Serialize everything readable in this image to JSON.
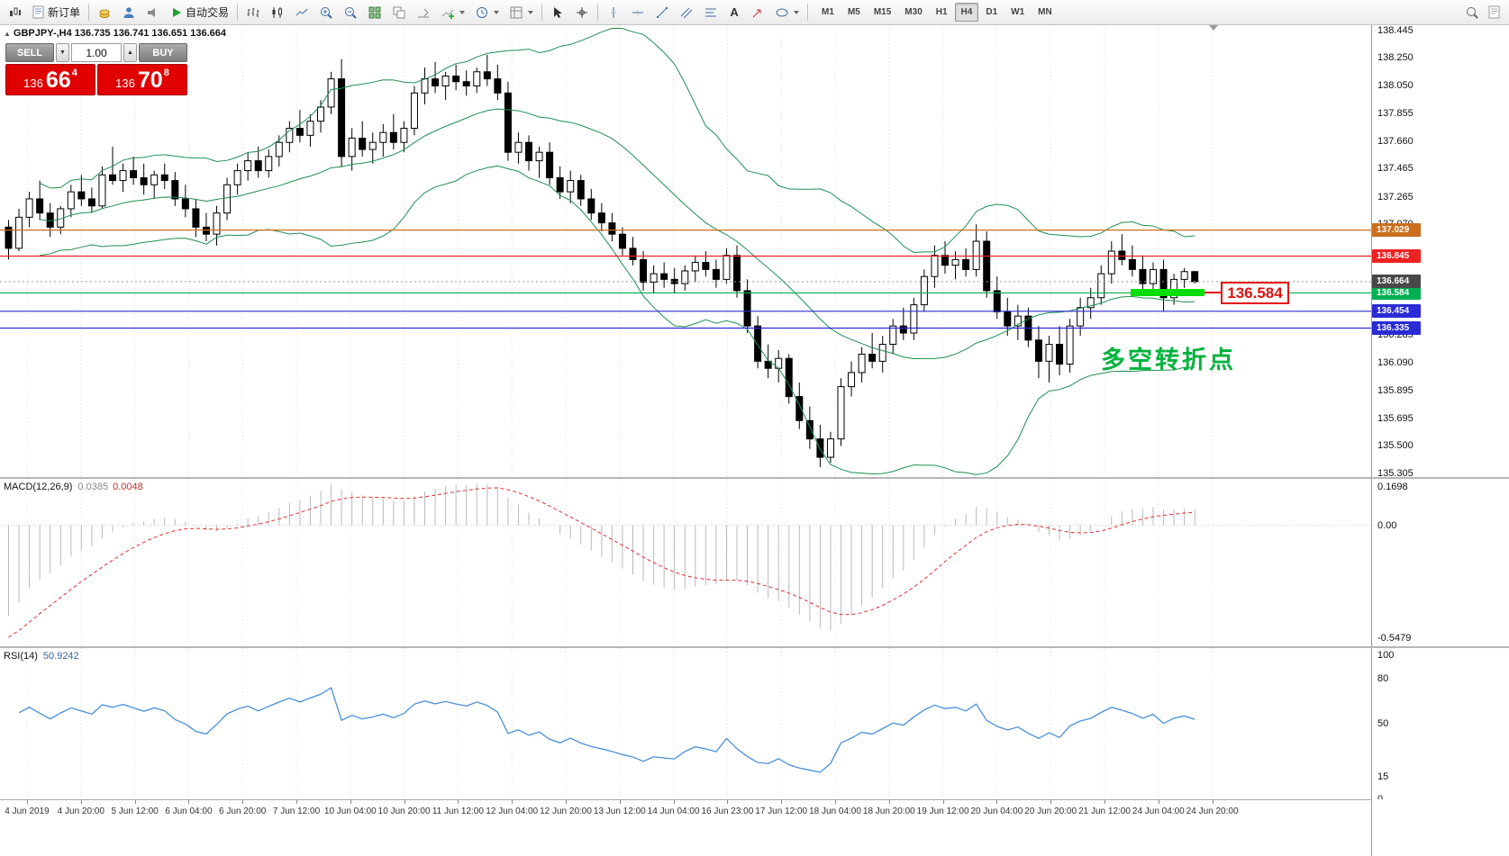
{
  "toolbar": {
    "new_order_label": "新订单",
    "autotrading_label": "自动交易",
    "text_tool_label": "A",
    "timeframes": [
      "M1",
      "M5",
      "M15",
      "M30",
      "H1",
      "H4",
      "D1",
      "W1",
      "MN"
    ],
    "active_timeframe": "H4",
    "icons": [
      "chart-window",
      "new-order",
      "market-watch",
      "navigator",
      "terminal",
      "autotrading-play",
      "bar-chart",
      "candlestick-chart",
      "line-chart",
      "zoom-in",
      "zoom-out",
      "tile-windows",
      "auto-arrange",
      "chart-shift",
      "indicators",
      "periods",
      "templates",
      "cursor",
      "crosshair",
      "vertical-line",
      "horizontal-line",
      "trendline",
      "equidistant-channel",
      "fibonacci",
      "text",
      "arrow",
      "shapes",
      "search",
      "help"
    ]
  },
  "chart": {
    "symbol_info": "GBPJPY-,H4  136.735 136.741 136.651 136.664",
    "trade_panel": {
      "sell_label": "SELL",
      "buy_label": "BUY",
      "volume": "1.00",
      "spin_down": "▼",
      "spin_up": "▲",
      "sell_price": {
        "prefix": "136",
        "big": "66",
        "sup": "4"
      },
      "buy_price": {
        "prefix": "136",
        "big": "70",
        "sup": "8"
      }
    },
    "annotation_price": "136.584",
    "annotation_text": "多空转折点",
    "hlines": [
      {
        "price": 137.029,
        "label": "137.029",
        "color": "#cc6e1e"
      },
      {
        "price": 136.845,
        "label": "136.845",
        "color": "#ee2222"
      },
      {
        "price": 136.584,
        "label": "136.584",
        "color": "#00b050"
      },
      {
        "price": 136.454,
        "label": "136.454",
        "color": "#2b2bd6"
      },
      {
        "price": 136.335,
        "label": "136.335",
        "color": "#2b2bd6"
      }
    ],
    "bid_tag": {
      "price": 136.664,
      "label": "136.664",
      "color": "#484848"
    },
    "scale_labels": [
      "138.445",
      "138.250",
      "138.050",
      "137.855",
      "137.660",
      "137.465",
      "137.265",
      "137.070",
      "136.285",
      "136.090",
      "135.895",
      "135.695",
      "135.500",
      "135.305"
    ]
  },
  "macd": {
    "name": "MACD(12,26,9)",
    "value_main": "0.0385",
    "value_signal": "0.0048",
    "scale_top": "0.1698",
    "scale_zero": "0.00",
    "scale_bottom": "-0.5479"
  },
  "rsi": {
    "name": "RSI(14)",
    "value": "50.9242",
    "scale": [
      "100",
      "80",
      "50",
      "15",
      "0"
    ]
  },
  "time_axis": [
    "4 Jun 2019",
    "4 Jun 20:00",
    "5 Jun 12:00",
    "6 Jun 04:00",
    "6 Jun 20:00",
    "7 Jun 12:00",
    "10 Jun 04:00",
    "10 Jun 20:00",
    "11 Jun 12:00",
    "12 Jun 04:00",
    "12 Jun 20:00",
    "13 Jun 12:00",
    "14 Jun 04:00",
    "16 Jun 23:00",
    "17 Jun 12:00",
    "18 Jun 04:00",
    "18 Jun 20:00",
    "19 Jun 12:00",
    "20 Jun 04:00",
    "20 Jun 20:00",
    "21 Jun 12:00",
    "24 Jun 04:00",
    "24 Jun 20:00"
  ],
  "chart_data": {
    "type": "candlestick",
    "symbol": "GBPJPY-",
    "timeframe": "H4",
    "current_bar": {
      "open": 136.735,
      "high": 136.741,
      "low": 136.651,
      "close": 136.664
    },
    "y_axis": {
      "min": 135.28,
      "max": 138.48
    },
    "levels": [
      137.029,
      136.845,
      136.664,
      136.584,
      136.454,
      136.335
    ],
    "indicators": {
      "bollinger": {
        "period": 20,
        "deviation": 2,
        "color": "#1f9050"
      },
      "macd": {
        "fast": 12,
        "slow": 26,
        "signal": 9,
        "values": [
          0.0385,
          0.0048
        ],
        "histogram_color": "#b9b9b9",
        "signal_color": "#e03030"
      },
      "rsi": {
        "period": 14,
        "value": 50.9242,
        "color": "#4a90d9"
      }
    },
    "ohlc": [
      [
        137.05,
        137.1,
        136.82,
        136.9
      ],
      [
        136.9,
        137.18,
        136.88,
        137.12
      ],
      [
        137.12,
        137.3,
        137.05,
        137.25
      ],
      [
        137.25,
        137.38,
        137.1,
        137.15
      ],
      [
        137.15,
        137.22,
        136.98,
        137.05
      ],
      [
        137.05,
        137.2,
        137.0,
        137.18
      ],
      [
        137.18,
        137.35,
        137.12,
        137.3
      ],
      [
        137.3,
        137.42,
        137.2,
        137.25
      ],
      [
        137.25,
        137.33,
        137.15,
        137.2
      ],
      [
        137.2,
        137.48,
        137.18,
        137.42
      ],
      [
        137.42,
        137.62,
        137.35,
        137.38
      ],
      [
        137.38,
        137.5,
        137.3,
        137.45
      ],
      [
        137.45,
        137.55,
        137.35,
        137.4
      ],
      [
        137.4,
        137.5,
        137.28,
        137.35
      ],
      [
        137.35,
        137.45,
        137.25,
        137.42
      ],
      [
        137.42,
        137.5,
        137.32,
        137.38
      ],
      [
        137.38,
        137.44,
        137.2,
        137.25
      ],
      [
        137.25,
        137.35,
        137.12,
        137.18
      ],
      [
        137.18,
        137.25,
        136.98,
        137.05
      ],
      [
        137.05,
        137.15,
        136.95,
        137.0
      ],
      [
        137.0,
        137.2,
        136.92,
        137.15
      ],
      [
        137.15,
        137.4,
        137.1,
        137.35
      ],
      [
        137.35,
        137.5,
        137.28,
        137.45
      ],
      [
        137.45,
        137.58,
        137.38,
        137.52
      ],
      [
        137.52,
        137.62,
        137.4,
        137.45
      ],
      [
        137.45,
        137.6,
        137.4,
        137.55
      ],
      [
        137.55,
        137.7,
        137.48,
        137.65
      ],
      [
        137.65,
        137.8,
        137.58,
        137.75
      ],
      [
        137.75,
        137.88,
        137.65,
        137.7
      ],
      [
        137.7,
        137.85,
        137.62,
        137.8
      ],
      [
        137.8,
        137.95,
        137.72,
        137.9
      ],
      [
        137.9,
        138.15,
        137.85,
        138.1
      ],
      [
        138.1,
        138.24,
        137.48,
        137.55
      ],
      [
        137.55,
        137.75,
        137.45,
        137.68
      ],
      [
        137.68,
        137.8,
        137.55,
        137.6
      ],
      [
        137.6,
        137.72,
        137.5,
        137.65
      ],
      [
        137.65,
        137.78,
        137.55,
        137.72
      ],
      [
        137.72,
        137.85,
        137.6,
        137.65
      ],
      [
        137.65,
        137.8,
        137.58,
        137.75
      ],
      [
        137.75,
        138.05,
        137.7,
        138.0
      ],
      [
        138.0,
        138.18,
        137.92,
        138.1
      ],
      [
        138.1,
        138.22,
        138.0,
        138.05
      ],
      [
        138.05,
        138.15,
        137.95,
        138.12
      ],
      [
        138.12,
        138.2,
        138.02,
        138.08
      ],
      [
        138.08,
        138.16,
        137.98,
        138.05
      ],
      [
        138.05,
        138.18,
        138.0,
        138.15
      ],
      [
        138.15,
        138.27,
        138.05,
        138.1
      ],
      [
        138.1,
        138.2,
        137.95,
        138.0
      ],
      [
        138.0,
        138.08,
        137.52,
        137.58
      ],
      [
        137.58,
        137.72,
        137.5,
        137.65
      ],
      [
        137.65,
        137.7,
        137.45,
        137.52
      ],
      [
        137.52,
        137.62,
        137.4,
        137.58
      ],
      [
        137.58,
        137.65,
        137.35,
        137.4
      ],
      [
        137.4,
        137.48,
        137.25,
        137.3
      ],
      [
        137.3,
        137.45,
        137.22,
        137.38
      ],
      [
        137.38,
        137.42,
        137.2,
        137.25
      ],
      [
        137.25,
        137.32,
        137.1,
        137.15
      ],
      [
        137.15,
        137.22,
        137.02,
        137.08
      ],
      [
        137.08,
        137.15,
        136.95,
        137.0
      ],
      [
        137.0,
        137.05,
        136.85,
        136.9
      ],
      [
        136.9,
        136.98,
        136.78,
        136.82
      ],
      [
        136.82,
        136.88,
        136.6,
        136.66
      ],
      [
        136.66,
        136.78,
        136.58,
        136.72
      ],
      [
        136.72,
        136.8,
        136.62,
        136.68
      ],
      [
        136.68,
        136.76,
        136.58,
        136.65
      ],
      [
        136.65,
        136.78,
        136.6,
        136.74
      ],
      [
        136.74,
        136.85,
        136.66,
        136.8
      ],
      [
        136.8,
        136.88,
        136.7,
        136.75
      ],
      [
        136.75,
        136.82,
        136.62,
        136.68
      ],
      [
        136.68,
        136.9,
        136.65,
        136.85
      ],
      [
        136.85,
        136.92,
        136.55,
        136.6
      ],
      [
        136.6,
        136.68,
        136.3,
        136.35
      ],
      [
        136.35,
        136.42,
        136.05,
        136.1
      ],
      [
        136.1,
        136.22,
        135.98,
        136.05
      ],
      [
        136.05,
        136.18,
        135.95,
        136.12
      ],
      [
        136.12,
        136.15,
        135.8,
        135.85
      ],
      [
        135.85,
        135.95,
        135.62,
        135.68
      ],
      [
        135.68,
        135.78,
        135.48,
        135.55
      ],
      [
        135.55,
        135.65,
        135.35,
        135.42
      ],
      [
        135.42,
        135.6,
        135.38,
        135.55
      ],
      [
        135.55,
        135.98,
        135.5,
        135.92
      ],
      [
        135.92,
        136.1,
        135.85,
        136.02
      ],
      [
        136.02,
        136.2,
        135.95,
        136.15
      ],
      [
        136.15,
        136.3,
        136.05,
        136.1
      ],
      [
        136.1,
        136.28,
        136.02,
        136.22
      ],
      [
        136.22,
        136.4,
        136.15,
        136.35
      ],
      [
        136.35,
        136.48,
        136.25,
        136.3
      ],
      [
        136.3,
        136.55,
        136.25,
        136.5
      ],
      [
        136.5,
        136.75,
        136.45,
        136.7
      ],
      [
        136.7,
        136.92,
        136.62,
        136.85
      ],
      [
        136.85,
        136.95,
        136.72,
        136.78
      ],
      [
        136.78,
        136.88,
        136.68,
        136.82
      ],
      [
        136.82,
        136.9,
        136.7,
        136.75
      ],
      [
        136.75,
        137.07,
        136.7,
        136.95
      ],
      [
        136.95,
        137.02,
        136.55,
        136.6
      ],
      [
        136.6,
        136.7,
        136.4,
        136.45
      ],
      [
        136.45,
        136.55,
        136.28,
        136.35
      ],
      [
        136.35,
        136.5,
        136.25,
        136.42
      ],
      [
        136.42,
        136.48,
        136.2,
        136.25
      ],
      [
        136.25,
        136.35,
        135.98,
        136.1
      ],
      [
        136.1,
        136.28,
        135.95,
        136.22
      ],
      [
        136.22,
        136.35,
        136.0,
        136.08
      ],
      [
        136.08,
        136.4,
        136.02,
        136.35
      ],
      [
        136.35,
        136.55,
        136.28,
        136.48
      ],
      [
        136.48,
        136.62,
        136.4,
        136.55
      ],
      [
        136.55,
        136.78,
        136.5,
        136.72
      ],
      [
        136.72,
        136.95,
        136.65,
        136.88
      ],
      [
        136.88,
        137.0,
        136.78,
        136.82
      ],
      [
        136.82,
        136.92,
        136.7,
        136.75
      ],
      [
        136.75,
        136.85,
        136.6,
        136.65
      ],
      [
        136.65,
        136.8,
        136.58,
        136.75
      ],
      [
        136.75,
        136.82,
        136.45,
        136.55
      ],
      [
        136.55,
        136.72,
        136.5,
        136.68
      ],
      [
        136.68,
        136.76,
        136.62,
        136.735
      ],
      [
        136.735,
        136.741,
        136.651,
        136.664
      ]
    ]
  }
}
